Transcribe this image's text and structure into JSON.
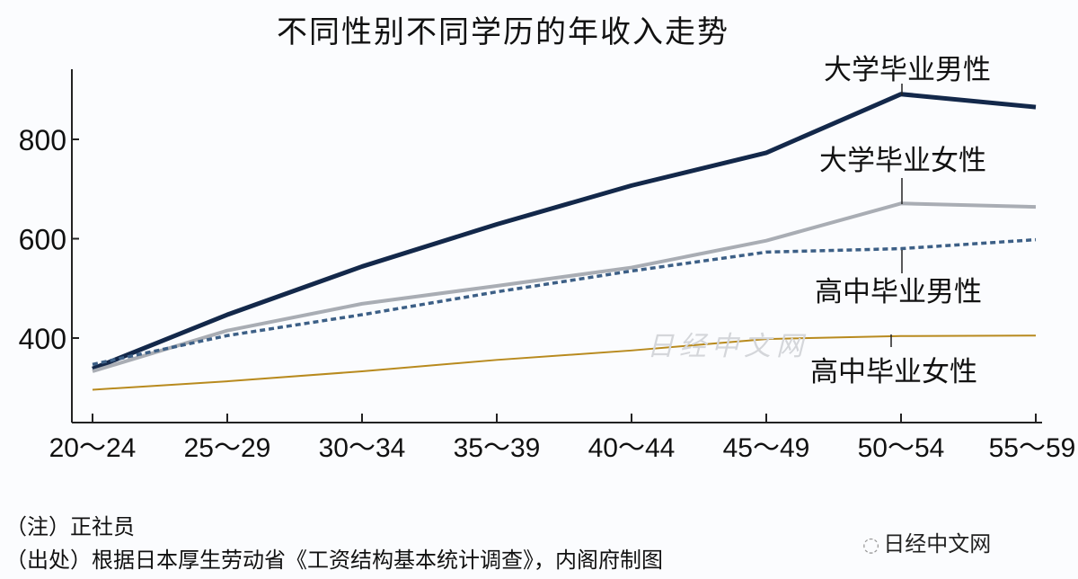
{
  "chart_data": {
    "type": "line",
    "title": "不同性别不同学历的年收入走势",
    "xlabel": "",
    "ylabel": "",
    "categories": [
      "20～24",
      "25～29",
      "30～34",
      "35～39",
      "40～44",
      "45～49",
      "50～54",
      "55～59"
    ],
    "yticks": [
      400,
      600,
      800
    ],
    "ylim": [
      235,
      950
    ],
    "grid": false,
    "series": [
      {
        "name": "大学毕业男性",
        "color": "#13284a",
        "style": "solid",
        "values": [
          338,
          447,
          544,
          629,
          707,
          773,
          891,
          865
        ]
      },
      {
        "name": "大学毕业女性",
        "color": "#a9adb4",
        "style": "solid",
        "values": [
          333,
          415,
          469,
          505,
          542,
          596,
          671,
          664
        ]
      },
      {
        "name": "高中毕业男性",
        "color": "#3c5f86",
        "style": "dashed",
        "values": [
          347,
          405,
          447,
          493,
          535,
          573,
          580,
          598
        ]
      },
      {
        "name": "高中毕业女性",
        "color": "#b88a1e",
        "style": "solid",
        "values": [
          296,
          313,
          333,
          356,
          375,
          398,
          404,
          405
        ]
      }
    ]
  },
  "notes": {
    "note": "（注）正社员",
    "source": "（出处）根据日本厚生劳动省《工资结构基本统计调查》，内阁府制图"
  },
  "watermark": "日经中文网",
  "logo": "日经中文网"
}
